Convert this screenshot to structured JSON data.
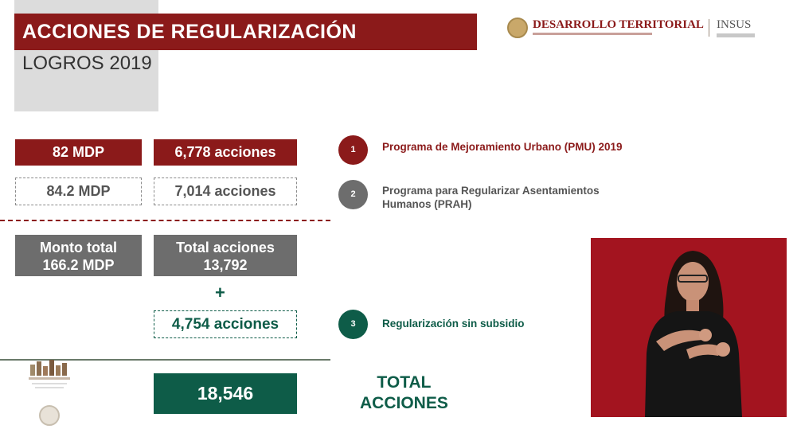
{
  "header": {
    "title": "ACCIONES DE REGULARIZACIÓN",
    "subtitle": "LOGROS 2019",
    "brand": "DESARROLLO TERRITORIAL",
    "brand_partner": "INSUS"
  },
  "rows": {
    "pmu": {
      "monto": "82 MDP",
      "acciones": "6,778 acciones"
    },
    "prah": {
      "monto": "84.2 MDP",
      "acciones": "7,014 acciones"
    },
    "totales": {
      "monto_label": "Monto total",
      "monto_value": "166.2 MDP",
      "acciones_label": "Total acciones",
      "acciones_value": "13,792"
    },
    "plus": "+",
    "sin_subsidio": "4,754 acciones",
    "gran_total": "18,546"
  },
  "programs": [
    {
      "number": "1",
      "name": "Programa de Mejoramiento Urbano (PMU) 2019",
      "color": "#8b1a1a"
    },
    {
      "number": "2",
      "name_line1": "Programa para Regularizar Asentamientos",
      "name_line2": "Humanos (PRAH)",
      "color": "#6d6d6d"
    },
    {
      "number": "3",
      "name": "Regularización sin subsidio",
      "color": "#0e5c48"
    }
  ],
  "total_label": {
    "line1": "TOTAL",
    "line2": "ACCIONES"
  },
  "colors": {
    "accent_red": "#8b1a1a",
    "accent_green": "#0e5c48",
    "neutral_gray": "#6d6d6d",
    "video_bg": "#a3141f"
  },
  "icons": [
    "national-seal-icon",
    "emblem-icon",
    "sign-language-interpreter"
  ]
}
